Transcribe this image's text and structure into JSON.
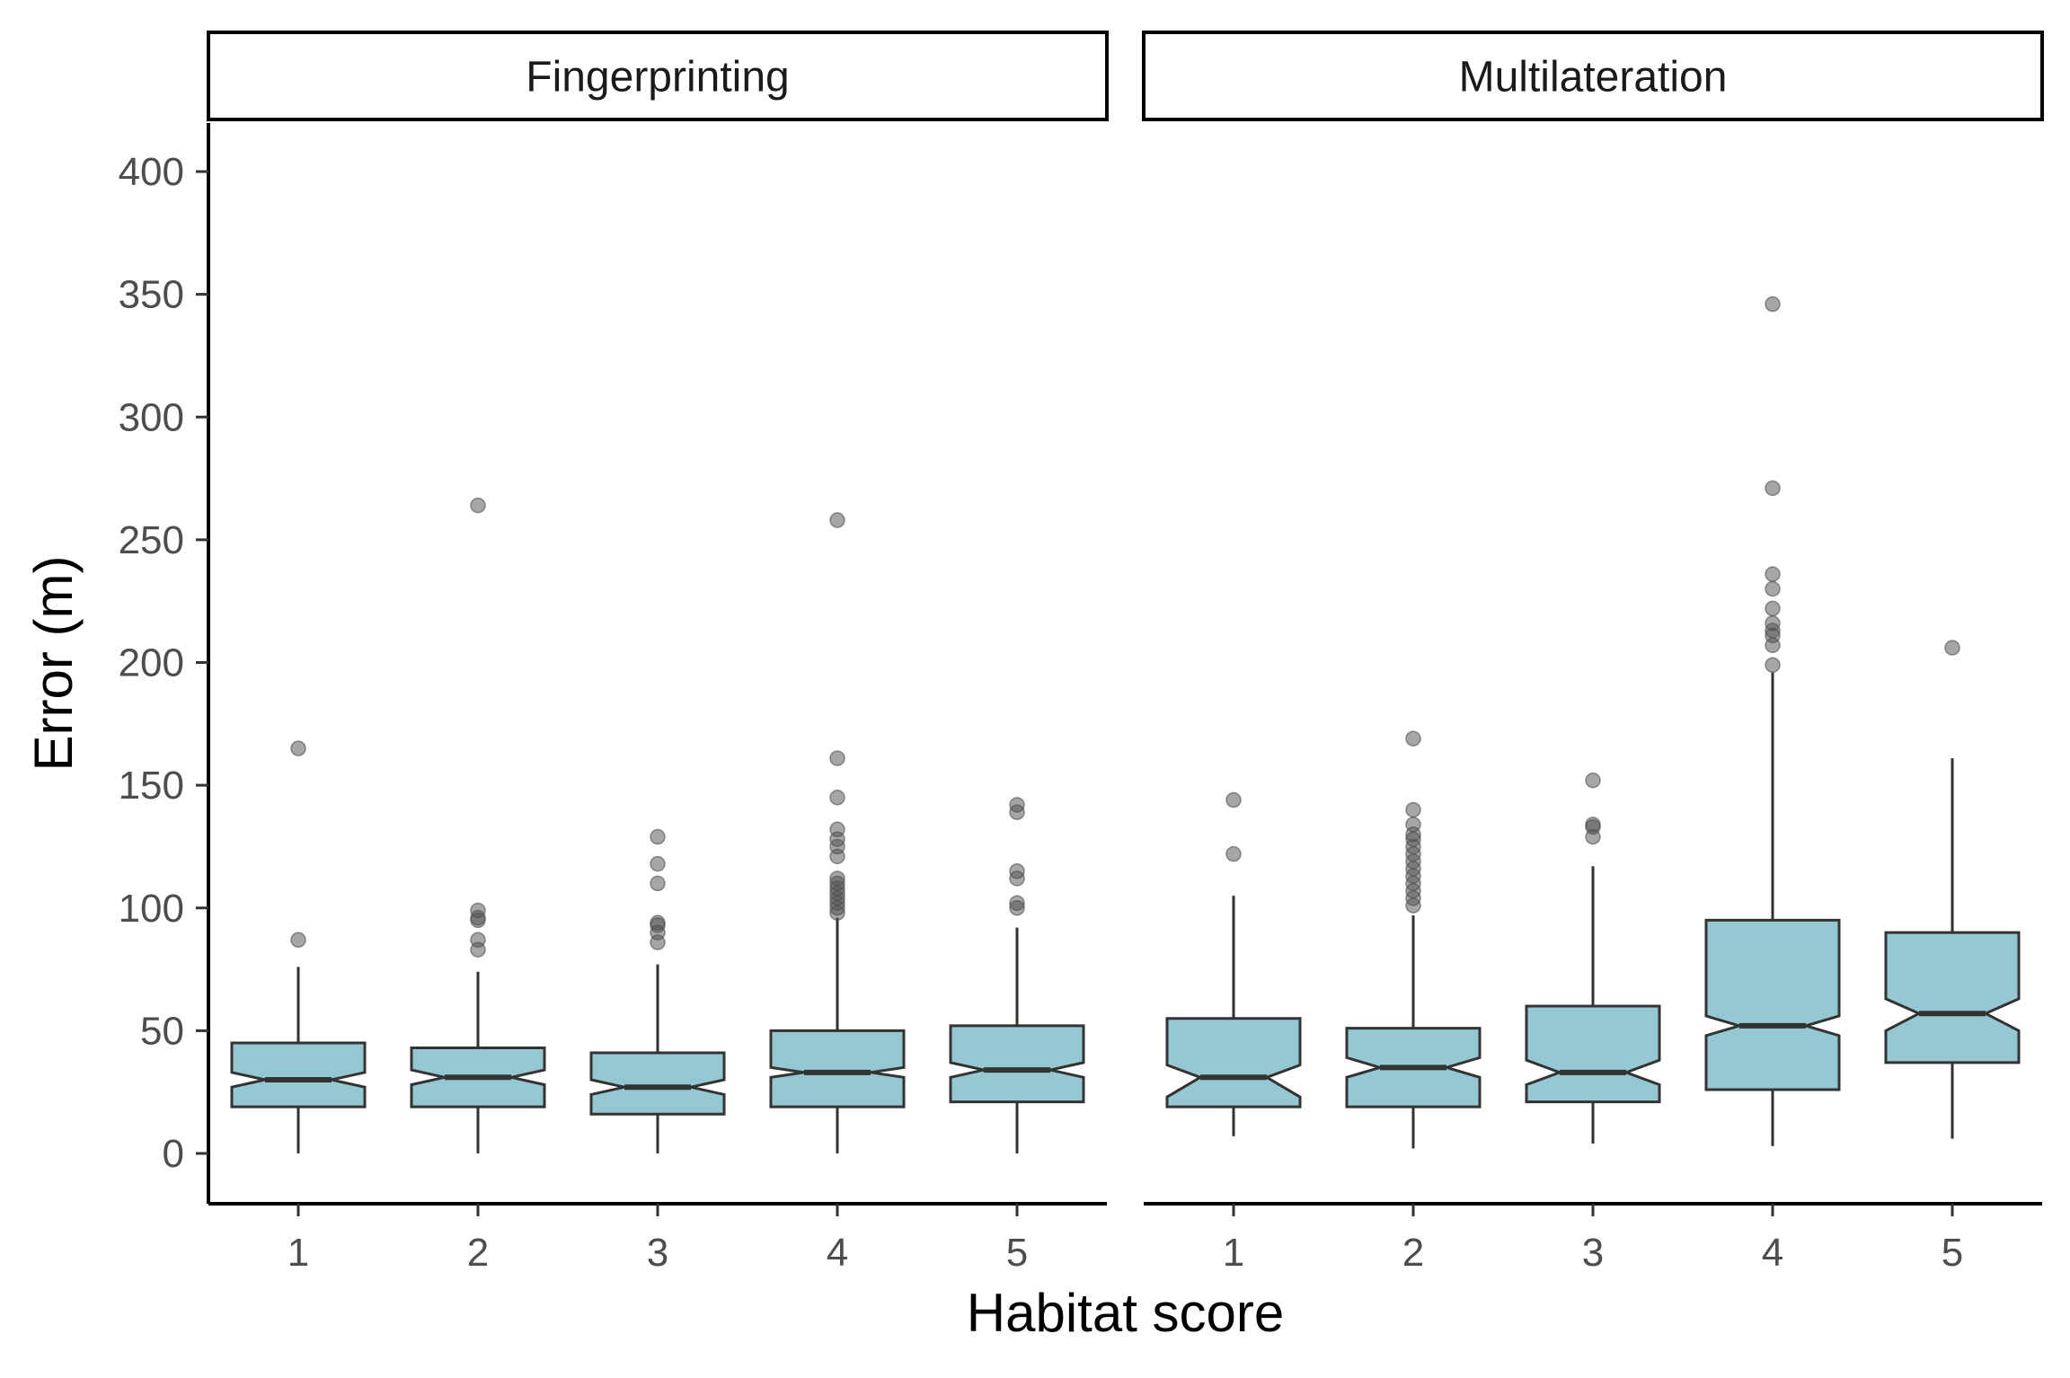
{
  "colors": {
    "box_fill": "#96c8d3",
    "box_stroke": "#333333",
    "outlier": "#4d4d4d",
    "axis": "#000000",
    "tick_text": "#4d4d4d"
  },
  "chart_data": {
    "type": "boxplot",
    "notched": true,
    "xlabel": "Habitat score",
    "ylabel": "Error (m)",
    "ylim": [
      -20,
      420
    ],
    "yticks": [
      "0",
      "50",
      "100",
      "150",
      "200",
      "250",
      "300",
      "350",
      "400"
    ],
    "categories": [
      "1",
      "2",
      "3",
      "4",
      "5"
    ],
    "grid": false,
    "panels": [
      {
        "name": "Fingerprinting",
        "boxes": [
          {
            "category": "1",
            "whisker_low": 0,
            "q1": 19,
            "median": 30,
            "q3": 45,
            "whisker_high": 76,
            "notch_low": 27,
            "notch_high": 33,
            "outliers": [
              87,
              165
            ]
          },
          {
            "category": "2",
            "whisker_low": 0,
            "q1": 19,
            "median": 31,
            "q3": 43,
            "whisker_high": 74,
            "notch_low": 28,
            "notch_high": 34,
            "outliers": [
              83,
              87,
              95,
              96,
              99,
              264
            ]
          },
          {
            "category": "3",
            "whisker_low": 0,
            "q1": 16,
            "median": 27,
            "q3": 41,
            "whisker_high": 77,
            "notch_low": 24,
            "notch_high": 30,
            "outliers": [
              86,
              90,
              93,
              94,
              110,
              118,
              129
            ]
          },
          {
            "category": "4",
            "whisker_low": 0,
            "q1": 19,
            "median": 33,
            "q3": 50,
            "whisker_high": 96,
            "notch_low": 31,
            "notch_high": 35,
            "outliers": [
              98,
              100,
              102,
              104,
              106,
              108,
              110,
              112,
              121,
              125,
              128,
              132,
              145,
              161,
              258
            ]
          },
          {
            "category": "5",
            "whisker_low": 0,
            "q1": 21,
            "median": 34,
            "q3": 52,
            "whisker_high": 92,
            "notch_low": 31,
            "notch_high": 37,
            "outliers": [
              100,
              102,
              112,
              115,
              139,
              142
            ]
          }
        ]
      },
      {
        "name": "Multilateration",
        "boxes": [
          {
            "category": "1",
            "whisker_low": 7,
            "q1": 19,
            "median": 31,
            "q3": 55,
            "whisker_high": 105,
            "notch_low": 23,
            "notch_high": 36,
            "outliers": [
              122,
              144
            ]
          },
          {
            "category": "2",
            "whisker_low": 2,
            "q1": 19,
            "median": 35,
            "q3": 51,
            "whisker_high": 97,
            "notch_low": 31,
            "notch_high": 39,
            "outliers": [
              101,
              104,
              107,
              110,
              113,
              116,
              119,
              122,
              125,
              128,
              130,
              134,
              140,
              169
            ]
          },
          {
            "category": "3",
            "whisker_low": 4,
            "q1": 21,
            "median": 33,
            "q3": 60,
            "whisker_high": 117,
            "notch_low": 28,
            "notch_high": 38,
            "outliers": [
              129,
              133,
              134,
              152
            ]
          },
          {
            "category": "4",
            "whisker_low": 3,
            "q1": 26,
            "median": 52,
            "q3": 95,
            "whisker_high": 196,
            "notch_low": 48,
            "notch_high": 56,
            "outliers": [
              199,
              207,
              211,
              213,
              216,
              222,
              230,
              236,
              271,
              346
            ]
          },
          {
            "category": "5",
            "whisker_low": 6,
            "q1": 37,
            "median": 57,
            "q3": 90,
            "whisker_high": 161,
            "notch_low": 50,
            "notch_high": 63,
            "outliers": [
              206
            ]
          }
        ]
      }
    ]
  }
}
